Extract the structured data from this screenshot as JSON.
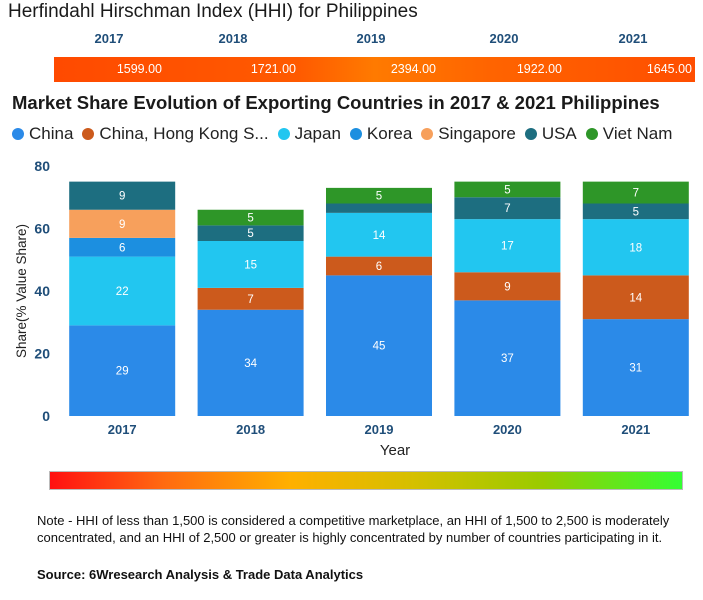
{
  "hhi": {
    "title": "Herfindahl Hirschman Index (HHI) for Philippines",
    "years": [
      "2017",
      "2018",
      "2019",
      "2020",
      "2021"
    ],
    "values": [
      "1599.00",
      "1721.00",
      "2394.00",
      "1922.00",
      "1645.00"
    ]
  },
  "chart_data": {
    "type": "bar",
    "stacked": true,
    "title": "Market Share Evolution of Exporting Countries in 2017 & 2021 Philippines",
    "xlabel": "Year",
    "ylabel": "Share(% Value Share)",
    "ylim": [
      0,
      80
    ],
    "yticks": [
      "0",
      "20",
      "40",
      "60",
      "80"
    ],
    "categories": [
      "2017",
      "2018",
      "2019",
      "2020",
      "2021"
    ],
    "series": [
      {
        "name": "China",
        "color": "#2b8ae8",
        "values": [
          29,
          34,
          45,
          37,
          31
        ]
      },
      {
        "name": "China, Hong Kong S...",
        "color": "#cc5a1c",
        "values": [
          0,
          7,
          6,
          9,
          14
        ]
      },
      {
        "name": "Japan",
        "color": "#22c6f0",
        "values": [
          22,
          15,
          14,
          17,
          18
        ]
      },
      {
        "name": "Korea",
        "color": "#1c8fe0",
        "values": [
          6,
          0,
          0,
          0,
          0
        ]
      },
      {
        "name": "Singapore",
        "color": "#f7a05c",
        "values": [
          9,
          0,
          0,
          0,
          0
        ]
      },
      {
        "name": "USA",
        "color": "#1d6e80",
        "values": [
          9,
          5,
          3,
          7,
          5
        ]
      },
      {
        "name": "Viet Nam",
        "color": "#2e9628",
        "values": [
          0,
          5,
          5,
          5,
          7
        ]
      }
    ],
    "labels": [
      [
        "29",
        "",
        "22",
        "6",
        "9",
        "9",
        ""
      ],
      [
        "34",
        "7",
        "15",
        "",
        "",
        "5",
        "5"
      ],
      [
        "45",
        "6",
        "14",
        "",
        "",
        "",
        "5"
      ],
      [
        "37",
        "9",
        "17",
        "",
        "",
        "7",
        "5"
      ],
      [
        "31",
        "14",
        "18",
        "",
        "",
        "5",
        "7"
      ]
    ]
  },
  "note": "Note - HHI of less than 1,500 is considered a competitive marketplace, an HHI of 1,500 to 2,500 is moderately concentrated, and an HHI of 2,500 or greater is highly concentrated by number of countries participating in it.",
  "source": "Source: 6Wresearch Analysis & Trade Data Analytics"
}
